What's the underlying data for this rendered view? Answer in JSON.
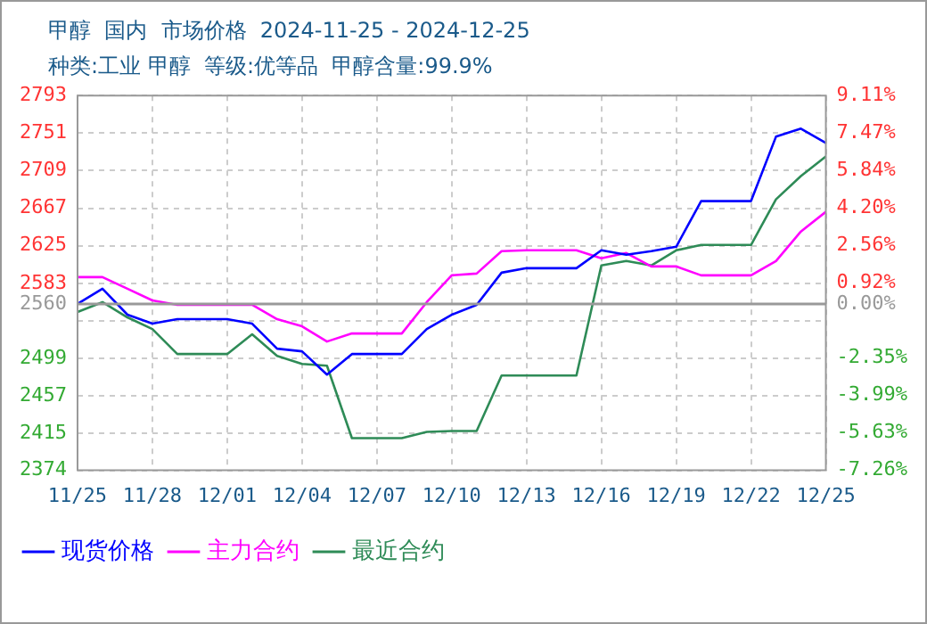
{
  "chart_data": {
    "type": "line",
    "title": "甲醇  国内  市场价格  2024-11-25 - 2024-12-25",
    "subtitle": "种类:工业 甲醇  等级:优等品  甲醇含量:99.9%",
    "categories": [
      "11/25",
      null,
      null,
      "11/28",
      null,
      null,
      "12/01",
      null,
      null,
      "12/04",
      null,
      null,
      "12/07",
      null,
      null,
      "12/10",
      null,
      null,
      "12/13",
      null,
      null,
      "12/16",
      null,
      null,
      "12/19",
      null,
      null,
      "12/22",
      null,
      null,
      "12/25"
    ],
    "series": [
      {
        "name": "现货价格",
        "color": "#0000ff",
        "values": [
          2560,
          2577,
          2548,
          2538,
          2543,
          2543,
          2543,
          2538,
          2510,
          2507,
          2481,
          2504,
          2504,
          2504,
          2532,
          2548,
          2559,
          2595,
          2600,
          2600,
          2600,
          2620,
          2615,
          2619,
          2624,
          2675,
          2675,
          2675,
          2747,
          2756,
          2740
        ]
      },
      {
        "name": "主力合约",
        "color": "#ff00ff",
        "values": [
          2590,
          2590,
          2577,
          2564,
          2559,
          2559,
          2559,
          2559,
          2543,
          2535,
          2518,
          2527,
          2527,
          2527,
          2562,
          2592,
          2594,
          2619,
          2620,
          2620,
          2620,
          2611,
          2617,
          2602,
          2602,
          2592,
          2592,
          2592,
          2608,
          2641,
          2663
        ]
      },
      {
        "name": "最近合约",
        "color": "#2e8b57",
        "values": [
          2551,
          2562,
          2545,
          2532,
          2504,
          2504,
          2504,
          2526,
          2502,
          2493,
          2491,
          2410,
          2410,
          2410,
          2417,
          2418,
          2418,
          2480,
          2480,
          2480,
          2480,
          2603,
          2608,
          2603,
          2620,
          2626,
          2626,
          2626,
          2677,
          2703,
          2725
        ]
      }
    ],
    "ylim": [
      2374,
      2793
    ],
    "yticks": [
      2374,
      2415,
      2457,
      2499,
      {
        "value": 2541,
        "label": null
      },
      2560,
      2583,
      2625,
      2667,
      2709,
      2751,
      2793
    ],
    "y2lim": [
      -7.26,
      9.11
    ],
    "y2ticks": [
      {
        "value": -7.26,
        "label": "-7.26%"
      },
      {
        "value": -5.63,
        "label": "-5.63%"
      },
      {
        "value": -3.99,
        "label": "-3.99%"
      },
      {
        "value": -2.35,
        "label": "-2.35%"
      },
      {
        "value": 0,
        "label": "0.00%"
      },
      {
        "value": 0.92,
        "label": "0.92%"
      },
      {
        "value": 2.56,
        "label": "2.56%"
      },
      {
        "value": 4.2,
        "label": "4.20%"
      },
      {
        "value": 5.84,
        "label": "5.84%"
      },
      {
        "value": 7.47,
        "label": "7.47%"
      },
      {
        "value": 9.11,
        "label": "9.11%"
      }
    ],
    "ref_lines": [
      {
        "axis": "y",
        "value": 2560,
        "color": "#999999"
      }
    ],
    "grid": true,
    "legend": "bottom",
    "marker": "none",
    "line_style": "solid"
  }
}
